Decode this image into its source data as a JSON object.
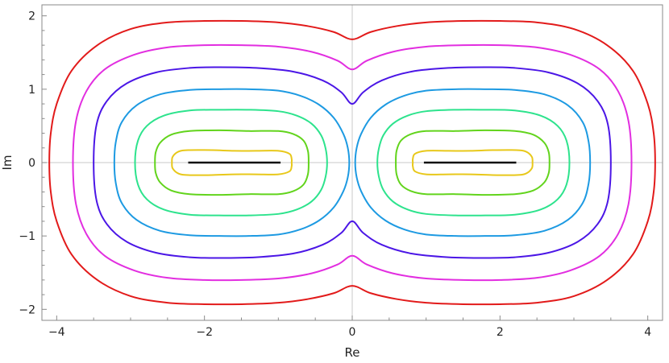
{
  "chart_data": {
    "type": "line",
    "title": "",
    "xlabel": "Re",
    "ylabel": "Im",
    "xlim": [
      -4.2,
      4.2
    ],
    "ylim": [
      -2.15,
      2.15
    ],
    "x_ticks": [
      -4,
      -2,
      0,
      2,
      4
    ],
    "y_ticks": [
      -2,
      -1,
      0,
      1,
      2
    ],
    "x_tick_labels": [
      "−4",
      "−2",
      "0",
      "2",
      "4"
    ],
    "y_tick_labels": [
      "−2",
      "−1",
      "0",
      "1",
      "2"
    ],
    "grid": false,
    "zero_axes": true,
    "legend": "none",
    "segments": [
      {
        "color": "#111111",
        "points": [
          [
            -2.22,
            0
          ],
          [
            -0.97,
            0
          ]
        ]
      },
      {
        "color": "#111111",
        "points": [
          [
            0.97,
            0
          ],
          [
            2.22,
            0
          ]
        ]
      }
    ],
    "contours": [
      {
        "color": "#e8c81a",
        "level": 1,
        "lobe_left": [
          [
            -2.22,
            0.17
          ],
          [
            -1.9,
            0.17
          ],
          [
            -1.6,
            0.16
          ],
          [
            -1.3,
            0.16
          ],
          [
            -1.0,
            0.16
          ],
          [
            -0.85,
            0.12
          ],
          [
            -0.82,
            0.05
          ],
          [
            -0.82,
            0
          ],
          [
            -0.82,
            -0.05
          ],
          [
            -0.85,
            -0.12
          ],
          [
            -1.0,
            -0.16
          ],
          [
            -1.3,
            -0.16
          ],
          [
            -1.6,
            -0.16
          ],
          [
            -1.9,
            -0.17
          ],
          [
            -2.22,
            -0.17
          ],
          [
            -2.35,
            -0.15
          ],
          [
            -2.43,
            -0.08
          ],
          [
            -2.44,
            0
          ],
          [
            -2.43,
            0.08
          ],
          [
            -2.35,
            0.15
          ],
          [
            -2.22,
            0.17
          ]
        ]
      },
      {
        "color": "#62d41c",
        "level": 2,
        "lobe_left": [
          [
            -2.2,
            0.43
          ],
          [
            -1.8,
            0.44
          ],
          [
            -1.4,
            0.43
          ],
          [
            -1.0,
            0.43
          ],
          [
            -0.8,
            0.39
          ],
          [
            -0.66,
            0.3
          ],
          [
            -0.6,
            0.16
          ],
          [
            -0.59,
            0
          ],
          [
            -0.6,
            -0.16
          ],
          [
            -0.66,
            -0.3
          ],
          [
            -0.8,
            -0.39
          ],
          [
            -1.0,
            -0.43
          ],
          [
            -1.4,
            -0.43
          ],
          [
            -1.8,
            -0.44
          ],
          [
            -2.2,
            -0.43
          ],
          [
            -2.45,
            -0.38
          ],
          [
            -2.6,
            -0.27
          ],
          [
            -2.66,
            -0.14
          ],
          [
            -2.67,
            0
          ],
          [
            -2.66,
            0.14
          ],
          [
            -2.6,
            0.27
          ],
          [
            -2.45,
            0.38
          ],
          [
            -2.2,
            0.43
          ]
        ]
      },
      {
        "color": "#2de38d",
        "level": 3,
        "lobe_left": [
          [
            -2.2,
            0.71
          ],
          [
            -1.8,
            0.72
          ],
          [
            -1.4,
            0.72
          ],
          [
            -1.0,
            0.7
          ],
          [
            -0.75,
            0.64
          ],
          [
            -0.55,
            0.53
          ],
          [
            -0.42,
            0.37
          ],
          [
            -0.36,
            0.19
          ],
          [
            -0.34,
            0
          ],
          [
            -0.36,
            -0.19
          ],
          [
            -0.42,
            -0.37
          ],
          [
            -0.55,
            -0.53
          ],
          [
            -0.75,
            -0.64
          ],
          [
            -1.0,
            -0.7
          ],
          [
            -1.4,
            -0.72
          ],
          [
            -1.8,
            -0.72
          ],
          [
            -2.2,
            -0.71
          ],
          [
            -2.55,
            -0.64
          ],
          [
            -2.78,
            -0.5
          ],
          [
            -2.9,
            -0.3
          ],
          [
            -2.94,
            0
          ],
          [
            -2.9,
            0.3
          ],
          [
            -2.78,
            0.5
          ],
          [
            -2.55,
            0.64
          ],
          [
            -2.2,
            0.71
          ]
        ]
      },
      {
        "color": "#1d9ae2",
        "level": 4,
        "lobe_left": [
          [
            -2.2,
            0.99
          ],
          [
            -1.8,
            1.0
          ],
          [
            -1.4,
            1.0
          ],
          [
            -1.0,
            0.98
          ],
          [
            -0.7,
            0.91
          ],
          [
            -0.45,
            0.79
          ],
          [
            -0.25,
            0.61
          ],
          [
            -0.12,
            0.39
          ],
          [
            -0.06,
            0.2
          ],
          [
            -0.04,
            0
          ],
          [
            -0.06,
            -0.2
          ],
          [
            -0.12,
            -0.39
          ],
          [
            -0.25,
            -0.61
          ],
          [
            -0.45,
            -0.79
          ],
          [
            -0.7,
            -0.91
          ],
          [
            -1.0,
            -0.98
          ],
          [
            -1.4,
            -1.0
          ],
          [
            -1.8,
            -1.0
          ],
          [
            -2.2,
            -0.99
          ],
          [
            -2.6,
            -0.93
          ],
          [
            -2.92,
            -0.78
          ],
          [
            -3.12,
            -0.55
          ],
          [
            -3.2,
            -0.28
          ],
          [
            -3.22,
            0
          ],
          [
            -3.2,
            0.28
          ],
          [
            -3.12,
            0.55
          ],
          [
            -2.92,
            0.78
          ],
          [
            -2.6,
            0.93
          ],
          [
            -2.2,
            0.99
          ]
        ]
      },
      {
        "color": "#4b16e6",
        "level": 5,
        "closed": [
          [
            0,
            0.8
          ],
          [
            0.15,
            0.96
          ],
          [
            0.4,
            1.12
          ],
          [
            0.8,
            1.24
          ],
          [
            1.3,
            1.29
          ],
          [
            1.8,
            1.3
          ],
          [
            2.2,
            1.29
          ],
          [
            2.65,
            1.23
          ],
          [
            3.05,
            1.08
          ],
          [
            3.32,
            0.84
          ],
          [
            3.46,
            0.52
          ],
          [
            3.5,
            0
          ],
          [
            3.46,
            -0.52
          ],
          [
            3.32,
            -0.84
          ],
          [
            3.05,
            -1.08
          ],
          [
            2.65,
            -1.23
          ],
          [
            2.2,
            -1.29
          ],
          [
            1.8,
            -1.3
          ],
          [
            1.3,
            -1.29
          ],
          [
            0.8,
            -1.24
          ],
          [
            0.4,
            -1.12
          ],
          [
            0.15,
            -0.96
          ],
          [
            0,
            -0.8
          ],
          [
            -0.15,
            -0.96
          ],
          [
            -0.4,
            -1.12
          ],
          [
            -0.8,
            -1.24
          ],
          [
            -1.3,
            -1.29
          ],
          [
            -1.8,
            -1.3
          ],
          [
            -2.2,
            -1.29
          ],
          [
            -2.65,
            -1.23
          ],
          [
            -3.05,
            -1.08
          ],
          [
            -3.32,
            -0.84
          ],
          [
            -3.46,
            -0.52
          ],
          [
            -3.5,
            0
          ],
          [
            -3.46,
            0.52
          ],
          [
            -3.32,
            0.84
          ],
          [
            -3.05,
            1.08
          ],
          [
            -2.65,
            1.23
          ],
          [
            -2.2,
            1.29
          ],
          [
            -1.8,
            1.3
          ],
          [
            -1.3,
            1.29
          ],
          [
            -0.8,
            1.24
          ],
          [
            -0.4,
            1.12
          ],
          [
            -0.15,
            0.96
          ],
          [
            0,
            0.8
          ]
        ]
      },
      {
        "color": "#e22ee0",
        "level": 6,
        "closed": [
          [
            0,
            1.27
          ],
          [
            0.2,
            1.39
          ],
          [
            0.55,
            1.51
          ],
          [
            1.0,
            1.58
          ],
          [
            1.5,
            1.6
          ],
          [
            2.0,
            1.6
          ],
          [
            2.5,
            1.57
          ],
          [
            2.95,
            1.47
          ],
          [
            3.35,
            1.27
          ],
          [
            3.6,
            0.97
          ],
          [
            3.74,
            0.56
          ],
          [
            3.78,
            0
          ],
          [
            3.74,
            -0.56
          ],
          [
            3.6,
            -0.97
          ],
          [
            3.35,
            -1.27
          ],
          [
            2.95,
            -1.47
          ],
          [
            2.5,
            -1.57
          ],
          [
            2.0,
            -1.6
          ],
          [
            1.5,
            -1.6
          ],
          [
            1.0,
            -1.58
          ],
          [
            0.55,
            -1.51
          ],
          [
            0.2,
            -1.39
          ],
          [
            0,
            -1.27
          ],
          [
            -0.2,
            -1.39
          ],
          [
            -0.55,
            -1.51
          ],
          [
            -1.0,
            -1.58
          ],
          [
            -1.5,
            -1.6
          ],
          [
            -2.0,
            -1.6
          ],
          [
            -2.5,
            -1.57
          ],
          [
            -2.95,
            -1.47
          ],
          [
            -3.35,
            -1.27
          ],
          [
            -3.6,
            -0.97
          ],
          [
            -3.74,
            -0.56
          ],
          [
            -3.78,
            0
          ],
          [
            -3.74,
            0.56
          ],
          [
            -3.6,
            0.97
          ],
          [
            -3.35,
            1.27
          ],
          [
            -2.95,
            1.47
          ],
          [
            -2.5,
            1.57
          ],
          [
            -2.0,
            1.6
          ],
          [
            -1.5,
            1.6
          ],
          [
            -1.0,
            1.58
          ],
          [
            -0.55,
            1.51
          ],
          [
            -0.2,
            1.39
          ],
          [
            0,
            1.27
          ]
        ]
      },
      {
        "color": "#e21a1a",
        "level": 7,
        "closed": [
          [
            0,
            1.68
          ],
          [
            0.25,
            1.78
          ],
          [
            0.6,
            1.86
          ],
          [
            1.0,
            1.91
          ],
          [
            1.5,
            1.93
          ],
          [
            2.0,
            1.93
          ],
          [
            2.5,
            1.91
          ],
          [
            3.0,
            1.82
          ],
          [
            3.45,
            1.6
          ],
          [
            3.8,
            1.25
          ],
          [
            4.0,
            0.8
          ],
          [
            4.08,
            0.4
          ],
          [
            4.1,
            0
          ],
          [
            4.08,
            -0.4
          ],
          [
            4.0,
            -0.8
          ],
          [
            3.8,
            -1.25
          ],
          [
            3.45,
            -1.6
          ],
          [
            3.0,
            -1.82
          ],
          [
            2.5,
            -1.91
          ],
          [
            2.0,
            -1.93
          ],
          [
            1.5,
            -1.93
          ],
          [
            1.0,
            -1.91
          ],
          [
            0.6,
            -1.86
          ],
          [
            0.25,
            -1.78
          ],
          [
            0,
            -1.68
          ],
          [
            -0.25,
            -1.78
          ],
          [
            -0.6,
            -1.86
          ],
          [
            -1.0,
            -1.91
          ],
          [
            -1.5,
            -1.93
          ],
          [
            -2.0,
            -1.93
          ],
          [
            -2.5,
            -1.91
          ],
          [
            -3.0,
            -1.82
          ],
          [
            -3.45,
            -1.6
          ],
          [
            -3.8,
            -1.25
          ],
          [
            -4.0,
            -0.8
          ],
          [
            -4.08,
            -0.4
          ],
          [
            -4.1,
            0
          ],
          [
            -4.08,
            0.4
          ],
          [
            -4.0,
            0.8
          ],
          [
            -3.8,
            1.25
          ],
          [
            -3.45,
            1.6
          ],
          [
            -3.0,
            1.82
          ],
          [
            -2.5,
            1.91
          ],
          [
            -2.0,
            1.93
          ],
          [
            -1.5,
            1.93
          ],
          [
            -1.0,
            1.91
          ],
          [
            -0.6,
            1.86
          ],
          [
            -0.25,
            1.78
          ],
          [
            0,
            1.68
          ]
        ]
      }
    ]
  }
}
